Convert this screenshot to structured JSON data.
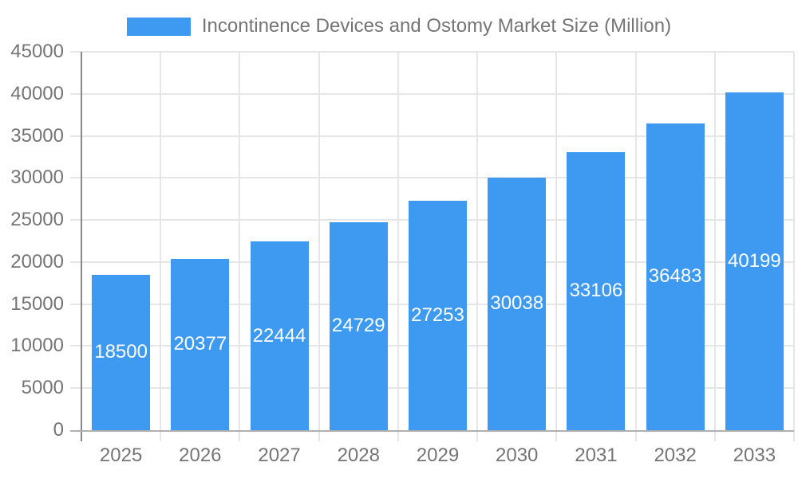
{
  "legend": {
    "label": "Incontinence Devices and Ostomy Market Size (Million)"
  },
  "chart_data": {
    "type": "bar",
    "title": "Incontinence Devices and Ostomy Market Size (Million)",
    "categories": [
      "2025",
      "2026",
      "2027",
      "2028",
      "2029",
      "2030",
      "2031",
      "2032",
      "2033"
    ],
    "values": [
      18500,
      20377,
      22444,
      24729,
      27253,
      30038,
      33106,
      36483,
      40199
    ],
    "series": [
      {
        "name": "Incontinence Devices and Ostomy Market Size (Million)",
        "values": [
          18500,
          20377,
          22444,
          24729,
          27253,
          30038,
          33106,
          36483,
          40199
        ]
      }
    ],
    "xlabel": "",
    "ylabel": "",
    "ylim": [
      0,
      45000
    ],
    "yticks": [
      0,
      5000,
      10000,
      15000,
      20000,
      25000,
      30000,
      35000,
      40000,
      45000
    ],
    "grid": true,
    "legend_position": "top",
    "value_label_position": "inside-center"
  },
  "colors": {
    "bar": "#3d9af0",
    "gridline": "#e6e6e6",
    "y_axis_line": "#888888",
    "x_axis_line": "#b0b0b0",
    "axis_label": "#757575",
    "value_label": "#ffffff",
    "background": "#ffffff"
  }
}
